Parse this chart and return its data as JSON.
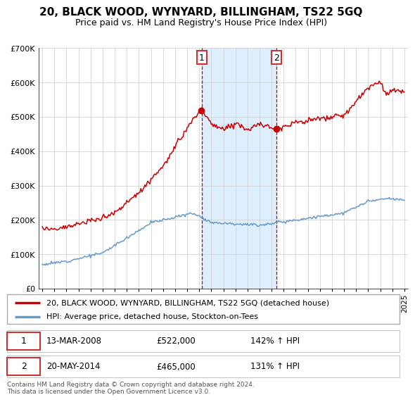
{
  "title": "20, BLACK WOOD, WYNYARD, BILLINGHAM, TS22 5GQ",
  "subtitle": "Price paid vs. HM Land Registry's House Price Index (HPI)",
  "legend_line1": "20, BLACK WOOD, WYNYARD, BILLINGHAM, TS22 5GQ (detached house)",
  "legend_line2": "HPI: Average price, detached house, Stockton-on-Tees",
  "transaction1_date": "13-MAR-2008",
  "transaction1_price": "£522,000",
  "transaction1_hpi": "142% ↑ HPI",
  "transaction2_date": "20-MAY-2014",
  "transaction2_price": "£465,000",
  "transaction2_hpi": "131% ↑ HPI",
  "footer": "Contains HM Land Registry data © Crown copyright and database right 2024.\nThis data is licensed under the Open Government Licence v3.0.",
  "red_color": "#cc0000",
  "blue_color": "#6699cc",
  "shade_color": "#ddeeff",
  "vline_color": "#cc0000",
  "box_color": "#cc3333",
  "ylim": [
    0,
    700000
  ],
  "year_start": 1995,
  "year_end": 2025,
  "transaction1_year": 2008.2,
  "transaction2_year": 2014.4,
  "title_fontsize": 11,
  "subtitle_fontsize": 9
}
